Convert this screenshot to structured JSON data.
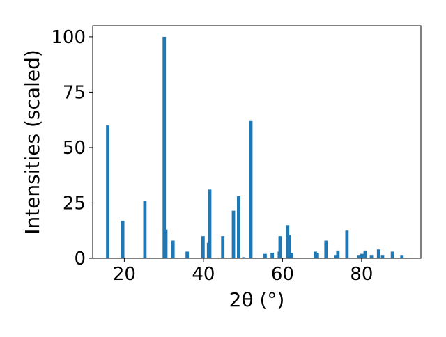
{
  "chart_data": {
    "type": "bar",
    "xlabel": "2θ (°)",
    "ylabel": "Intensities (scaled)",
    "xlim": [
      12,
      95
    ],
    "ylim": [
      0,
      105
    ],
    "xticks": [
      20,
      40,
      60,
      80
    ],
    "yticks": [
      0,
      25,
      50,
      75,
      100
    ],
    "bar_color": "#1f77b4",
    "grid": false,
    "series": [
      {
        "x": [
          15.8,
          19.6,
          25.2,
          30.1,
          30.5,
          32.3,
          35.9,
          39.9,
          41.3,
          41.6,
          44.9,
          47.6,
          48.9,
          50.2,
          52.0,
          55.6,
          57.4,
          59.2,
          59.4,
          61.3,
          61.7,
          62.3,
          68.3,
          68.8,
          71.0,
          73.5,
          74.0,
          76.3,
          79.3,
          80.1,
          80.9,
          82.5,
          84.3,
          85.3,
          87.8,
          90.2
        ],
        "y": [
          60,
          17,
          26,
          100,
          13,
          8,
          3,
          10,
          7,
          31,
          10,
          21.5,
          28,
          0.5,
          62,
          2,
          2.5,
          3,
          10,
          15,
          10.5,
          2.5,
          3,
          2.5,
          8,
          1.5,
          3.5,
          12.5,
          1.5,
          2,
          3.5,
          1.5,
          4,
          1.5,
          3,
          1.5
        ]
      }
    ]
  }
}
